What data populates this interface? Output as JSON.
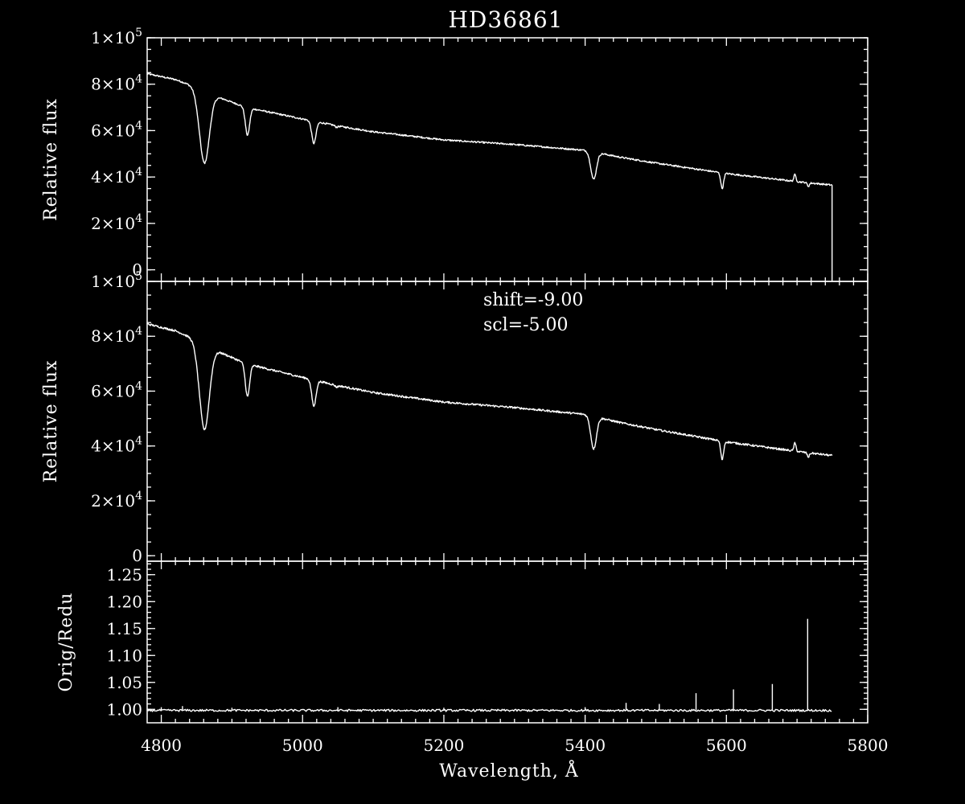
{
  "chart_data": {
    "type": "line",
    "title": "HD36861",
    "xlabel": "Wavelength, Å",
    "xlim": [
      4780,
      5800
    ],
    "xticks": [
      4800,
      5000,
      5200,
      5400,
      5600,
      5800
    ],
    "panels": [
      {
        "id": "top",
        "ylabel": "Relative flux",
        "ylim": [
          -5000,
          100000
        ],
        "yticks": [
          {
            "v": 100000,
            "mant": "1×10",
            "exp": "5"
          },
          {
            "v": 80000,
            "mant": "8×10",
            "exp": "4"
          },
          {
            "v": 60000,
            "mant": "6×10",
            "exp": "4"
          },
          {
            "v": 40000,
            "mant": "4×10",
            "exp": "4"
          },
          {
            "v": 20000,
            "mant": "2×10",
            "exp": "4"
          },
          {
            "v": 0,
            "mant": "0",
            "exp": ""
          }
        ],
        "continuum": [
          [
            4780,
            84500
          ],
          [
            4820,
            82000
          ],
          [
            4860,
            77500
          ],
          [
            4880,
            74500
          ],
          [
            4920,
            70000
          ],
          [
            5000,
            65000
          ],
          [
            5050,
            62000
          ],
          [
            5100,
            59500
          ],
          [
            5200,
            56000
          ],
          [
            5300,
            54000
          ],
          [
            5400,
            51500
          ],
          [
            5450,
            48500
          ],
          [
            5500,
            46000
          ],
          [
            5600,
            41500
          ],
          [
            5700,
            38000
          ],
          [
            5750,
            36500
          ]
        ],
        "lines": [
          [
            4861,
            46000,
            7
          ],
          [
            4922,
            58000,
            3
          ],
          [
            5016,
            54500,
            3
          ],
          [
            5048,
            61500,
            2
          ],
          [
            5412,
            39000,
            4
          ],
          [
            5594,
            35000,
            2
          ],
          [
            5716,
            36000,
            1.5
          ]
        ],
        "emissions": [
          [
            5697,
            41000
          ]
        ],
        "drop_at_end": true
      },
      {
        "id": "middle",
        "ylabel": "Relative flux",
        "ylim": [
          -2000,
          100000
        ],
        "yticks": [
          {
            "v": 100000,
            "mant": "1×10",
            "exp": "5"
          },
          {
            "v": 80000,
            "mant": "8×10",
            "exp": "4"
          },
          {
            "v": 60000,
            "mant": "6×10",
            "exp": "4"
          },
          {
            "v": 40000,
            "mant": "4×10",
            "exp": "4"
          },
          {
            "v": 20000,
            "mant": "2×10",
            "exp": "4"
          },
          {
            "v": 0,
            "mant": "0",
            "exp": ""
          }
        ],
        "continuum": [
          [
            4780,
            84500
          ],
          [
            4820,
            82000
          ],
          [
            4860,
            77500
          ],
          [
            4880,
            74500
          ],
          [
            4920,
            70000
          ],
          [
            5000,
            65000
          ],
          [
            5050,
            62000
          ],
          [
            5100,
            59500
          ],
          [
            5200,
            56000
          ],
          [
            5300,
            54000
          ],
          [
            5400,
            51500
          ],
          [
            5450,
            48500
          ],
          [
            5500,
            46000
          ],
          [
            5600,
            41500
          ],
          [
            5700,
            38000
          ],
          [
            5750,
            36500
          ]
        ],
        "lines": [
          [
            4861,
            46000,
            7
          ],
          [
            4922,
            58000,
            3
          ],
          [
            5016,
            54500,
            3
          ],
          [
            5048,
            61500,
            2
          ],
          [
            5412,
            39000,
            4
          ],
          [
            5594,
            35000,
            2
          ],
          [
            5716,
            36000,
            1.5
          ]
        ],
        "emissions": [
          [
            5697,
            41000
          ]
        ],
        "drop_at_end": false,
        "annotations": [
          "shift=-9.00",
          "scl=-5.00"
        ]
      },
      {
        "id": "bottom",
        "ylabel": "Orig/Redu",
        "ylim": [
          0.975,
          1.275
        ],
        "yticks": [
          {
            "v": 1.25,
            "label": "1.25"
          },
          {
            "v": 1.2,
            "label": "1.20"
          },
          {
            "v": 1.15,
            "label": "1.15"
          },
          {
            "v": 1.1,
            "label": "1.10"
          },
          {
            "v": 1.05,
            "label": "1.05"
          },
          {
            "v": 1.0,
            "label": "1.00"
          }
        ],
        "baseline": 0.998,
        "spikes": [
          [
            4800,
            1.004
          ],
          [
            4830,
            1.006
          ],
          [
            4900,
            1.003
          ],
          [
            5050,
            1.004
          ],
          [
            5200,
            1.003
          ],
          [
            5400,
            1.004
          ],
          [
            5458,
            1.012
          ],
          [
            5505,
            1.01
          ],
          [
            5557,
            1.03
          ],
          [
            5610,
            1.037
          ],
          [
            5665,
            1.047
          ],
          [
            5715,
            1.168
          ]
        ]
      }
    ]
  }
}
